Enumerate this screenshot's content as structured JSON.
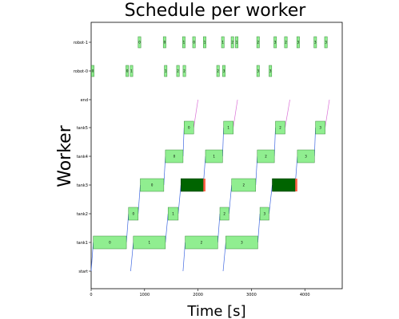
{
  "chart_data": {
    "type": "gantt",
    "title": "Schedule per worker",
    "xlabel": "Time [s]",
    "ylabel": "Worker",
    "xlim": [
      0,
      4700
    ],
    "x_ticks": [
      0,
      1000,
      2000,
      3000,
      4000
    ],
    "y_categories": [
      "start",
      "tank1",
      "tank2",
      "tank3",
      "tank4",
      "tank5",
      "end",
      "robot-0",
      "robot-1"
    ],
    "colors": {
      "task": "#90ee90",
      "task_edge": "#3c8c3c",
      "dark_task": "#006400",
      "overrun": "#ff6347",
      "rise": "#4169e1",
      "fall": "#da70d6"
    },
    "bars": [
      {
        "worker": "tank1",
        "start": 40,
        "end": 660,
        "label": "0"
      },
      {
        "worker": "tank1",
        "start": 790,
        "end": 1390,
        "label": "1"
      },
      {
        "worker": "tank1",
        "start": 1760,
        "end": 2370,
        "label": "2"
      },
      {
        "worker": "tank1",
        "start": 2520,
        "end": 3120,
        "label": "3"
      },
      {
        "worker": "tank2",
        "start": 700,
        "end": 880,
        "label": "0"
      },
      {
        "worker": "tank2",
        "start": 1440,
        "end": 1630,
        "label": "1"
      },
      {
        "worker": "tank2",
        "start": 2410,
        "end": 2580,
        "label": "2"
      },
      {
        "worker": "tank2",
        "start": 3160,
        "end": 3330,
        "label": "3"
      },
      {
        "worker": "tank3",
        "start": 920,
        "end": 1360,
        "label": "0"
      },
      {
        "worker": "tank3",
        "start": 1680,
        "end": 2100,
        "label": "",
        "dark": true
      },
      {
        "worker": "tank3",
        "start": 2630,
        "end": 3080,
        "label": "2"
      },
      {
        "worker": "tank3",
        "start": 3390,
        "end": 3820,
        "label": "",
        "dark": true
      },
      {
        "worker": "tank4",
        "start": 1390,
        "end": 1720,
        "label": "0"
      },
      {
        "worker": "tank4",
        "start": 2140,
        "end": 2460,
        "label": "1"
      },
      {
        "worker": "tank4",
        "start": 3110,
        "end": 3430,
        "label": "2"
      },
      {
        "worker": "tank4",
        "start": 3860,
        "end": 4180,
        "label": "3"
      },
      {
        "worker": "tank5",
        "start": 1740,
        "end": 1920,
        "label": "0"
      },
      {
        "worker": "tank5",
        "start": 2480,
        "end": 2660,
        "label": "1"
      },
      {
        "worker": "tank5",
        "start": 3450,
        "end": 3630,
        "label": "2"
      },
      {
        "worker": "tank5",
        "start": 4200,
        "end": 4380,
        "label": "3"
      },
      {
        "worker": "robot-0",
        "start": 5,
        "end": 55,
        "label": "0"
      },
      {
        "worker": "robot-0",
        "start": 650,
        "end": 700,
        "label": "0"
      },
      {
        "worker": "robot-0",
        "start": 730,
        "end": 780,
        "label": "1"
      },
      {
        "worker": "robot-0",
        "start": 1370,
        "end": 1420,
        "label": "1"
      },
      {
        "worker": "robot-0",
        "start": 1600,
        "end": 1650,
        "label": "2"
      },
      {
        "worker": "robot-0",
        "start": 1720,
        "end": 1770,
        "label": "2"
      },
      {
        "worker": "robot-0",
        "start": 2350,
        "end": 2400,
        "label": "2"
      },
      {
        "worker": "robot-0",
        "start": 2460,
        "end": 2510,
        "label": "3"
      },
      {
        "worker": "robot-0",
        "start": 3100,
        "end": 3150,
        "label": "3"
      },
      {
        "worker": "robot-0",
        "start": 3330,
        "end": 3380,
        "label": "3"
      },
      {
        "worker": "robot-1",
        "start": 880,
        "end": 930,
        "label": "0"
      },
      {
        "worker": "robot-1",
        "start": 1350,
        "end": 1400,
        "label": "0"
      },
      {
        "worker": "robot-1",
        "start": 1710,
        "end": 1760,
        "label": "1"
      },
      {
        "worker": "robot-1",
        "start": 1900,
        "end": 1950,
        "label": "0"
      },
      {
        "worker": "robot-1",
        "start": 2100,
        "end": 2150,
        "label": "1"
      },
      {
        "worker": "robot-1",
        "start": 2440,
        "end": 2490,
        "label": "1"
      },
      {
        "worker": "robot-1",
        "start": 2620,
        "end": 2670,
        "label": "2"
      },
      {
        "worker": "robot-1",
        "start": 2700,
        "end": 2750,
        "label": "1"
      },
      {
        "worker": "robot-1",
        "start": 3100,
        "end": 3150,
        "label": "2"
      },
      {
        "worker": "robot-1",
        "start": 3420,
        "end": 3470,
        "label": "3"
      },
      {
        "worker": "robot-1",
        "start": 3620,
        "end": 3670,
        "label": "2"
      },
      {
        "worker": "robot-1",
        "start": 3850,
        "end": 3900,
        "label": "3"
      },
      {
        "worker": "robot-1",
        "start": 4170,
        "end": 4220,
        "label": "3"
      },
      {
        "worker": "robot-1",
        "start": 4370,
        "end": 4420,
        "label": "3"
      }
    ],
    "overruns": [
      {
        "worker": "tank3",
        "start": 2100,
        "end": 2140
      },
      {
        "worker": "tank3",
        "start": 3820,
        "end": 3860
      }
    ],
    "rise_lines": [
      [
        [
          0,
          "start"
        ],
        [
          40,
          "tank1"
        ]
      ],
      [
        [
          660,
          "tank1"
        ],
        [
          700,
          "tank2"
        ]
      ],
      [
        [
          880,
          "tank2"
        ],
        [
          920,
          "tank3"
        ]
      ],
      [
        [
          1360,
          "tank3"
        ],
        [
          1390,
          "tank4"
        ]
      ],
      [
        [
          1720,
          "tank4"
        ],
        [
          1740,
          "tank5"
        ]
      ],
      [
        [
          740,
          "start"
        ],
        [
          790,
          "tank1"
        ]
      ],
      [
        [
          1390,
          "tank1"
        ],
        [
          1440,
          "tank2"
        ]
      ],
      [
        [
          1630,
          "tank2"
        ],
        [
          1680,
          "tank3"
        ]
      ],
      [
        [
          2100,
          "tank3"
        ],
        [
          2140,
          "tank4"
        ]
      ],
      [
        [
          2460,
          "tank4"
        ],
        [
          2480,
          "tank5"
        ]
      ],
      [
        [
          1720,
          "start"
        ],
        [
          1760,
          "tank1"
        ]
      ],
      [
        [
          2370,
          "tank1"
        ],
        [
          2410,
          "tank2"
        ]
      ],
      [
        [
          2580,
          "tank2"
        ],
        [
          2630,
          "tank3"
        ]
      ],
      [
        [
          3080,
          "tank3"
        ],
        [
          3110,
          "tank4"
        ]
      ],
      [
        [
          3430,
          "tank4"
        ],
        [
          3450,
          "tank5"
        ]
      ],
      [
        [
          2470,
          "start"
        ],
        [
          2520,
          "tank1"
        ]
      ],
      [
        [
          3120,
          "tank1"
        ],
        [
          3160,
          "tank2"
        ]
      ],
      [
        [
          3330,
          "tank2"
        ],
        [
          3390,
          "tank3"
        ]
      ],
      [
        [
          3820,
          "tank3"
        ],
        [
          3860,
          "tank4"
        ]
      ],
      [
        [
          4180,
          "tank4"
        ],
        [
          4200,
          "tank5"
        ]
      ]
    ],
    "fall_lines": [
      [
        [
          1920,
          "tank5"
        ],
        [
          2000,
          "end"
        ]
      ],
      [
        [
          2660,
          "tank5"
        ],
        [
          2740,
          "end"
        ]
      ],
      [
        [
          3630,
          "tank5"
        ],
        [
          3720,
          "end"
        ]
      ],
      [
        [
          4380,
          "tank5"
        ],
        [
          4460,
          "end"
        ]
      ]
    ]
  }
}
